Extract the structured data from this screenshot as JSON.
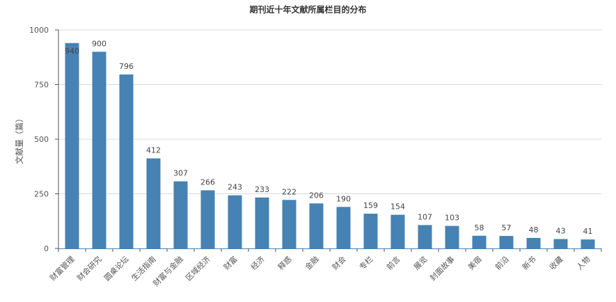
{
  "chart_data": {
    "type": "bar",
    "title": "期刊近十年文献所属栏目的分布",
    "ylabel": "文献量（篇）",
    "xlabel": "",
    "ylim": [
      0,
      1000
    ],
    "yticks": [
      0,
      250,
      500,
      750,
      1000
    ],
    "grid": true,
    "bar_color": "#4682b4",
    "categories": [
      "财富管理",
      "财会研究",
      "圆桌论坛",
      "生活指南",
      "财富与金融",
      "区域经济",
      "财富",
      "经济",
      "释惑",
      "金融",
      "财会",
      "专栏",
      "前言",
      "展览",
      "封面故事",
      "美宿",
      "前沿",
      "新书",
      "收藏",
      "人物"
    ],
    "values": [
      940,
      900,
      796,
      412,
      307,
      266,
      243,
      233,
      222,
      206,
      190,
      159,
      154,
      107,
      103,
      58,
      57,
      48,
      43,
      41
    ]
  }
}
